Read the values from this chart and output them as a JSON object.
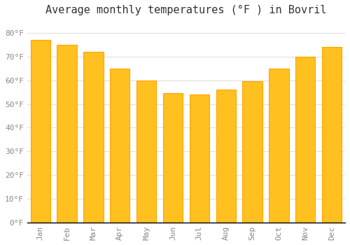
{
  "title": "Average monthly temperatures (°F ) in Bovril",
  "months": [
    "Jan",
    "Feb",
    "Mar",
    "Apr",
    "May",
    "Jun",
    "Jul",
    "Aug",
    "Sep",
    "Oct",
    "Nov",
    "Dec"
  ],
  "values": [
    77,
    75,
    72,
    65,
    60,
    54.5,
    54,
    56,
    59.5,
    65,
    70,
    74
  ],
  "bar_color_face": "#FFC020",
  "bar_color_edge": "#FFA500",
  "background_color": "#FFFFFF",
  "grid_color": "#E0E0E0",
  "tick_color": "#888888",
  "ylim": [
    0,
    85
  ],
  "yticks": [
    0,
    10,
    20,
    30,
    40,
    50,
    60,
    70,
    80
  ],
  "ytick_labels": [
    "0°F",
    "10°F",
    "20°F",
    "30°F",
    "40°F",
    "50°F",
    "60°F",
    "70°F",
    "80°F"
  ],
  "title_fontsize": 11,
  "tick_fontsize": 8,
  "font_family": "monospace"
}
